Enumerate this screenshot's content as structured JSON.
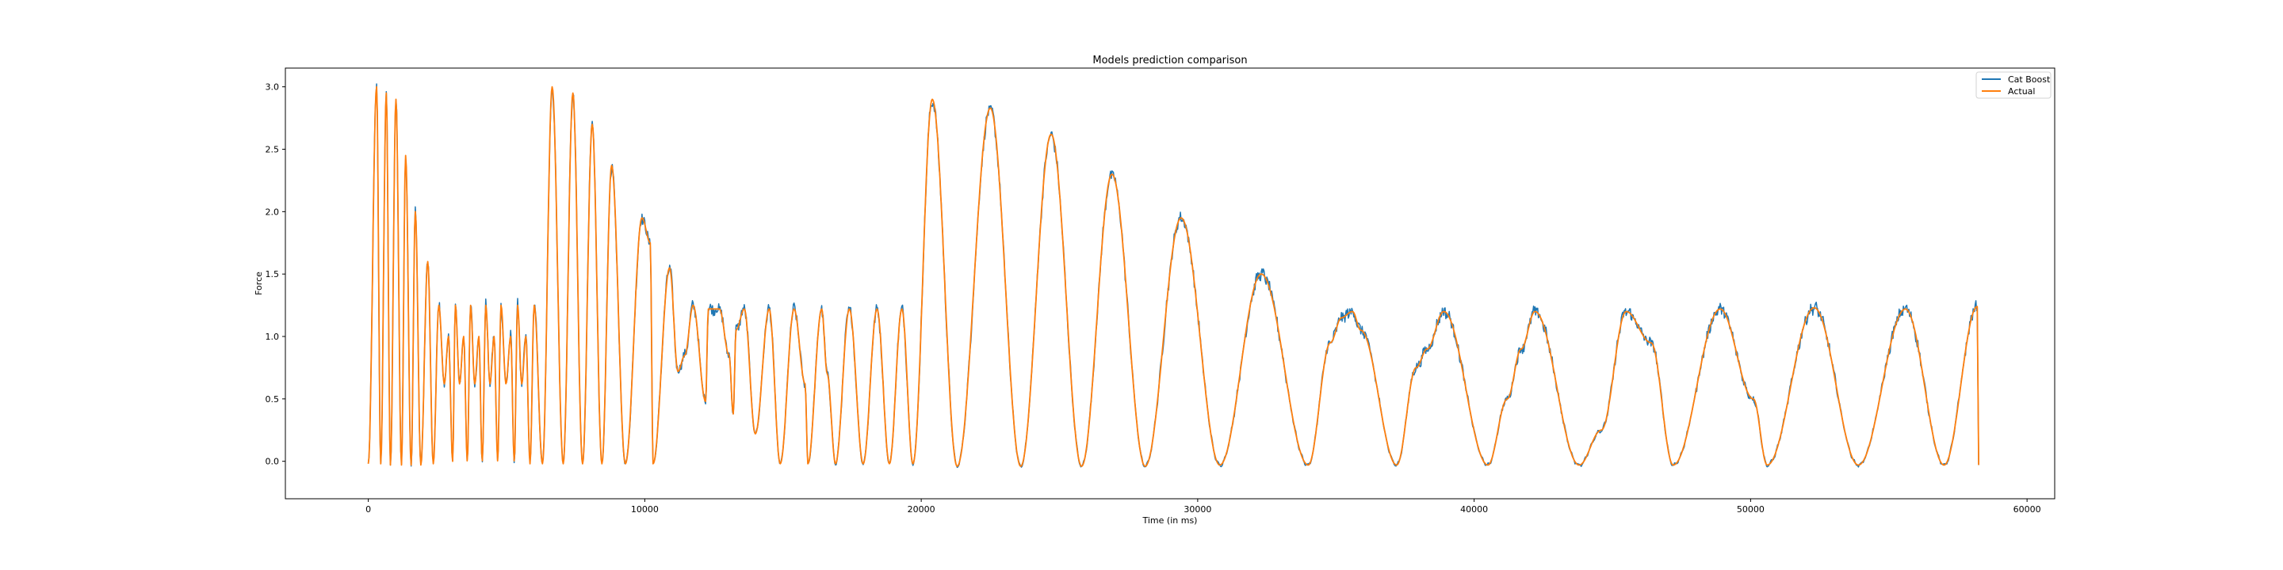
{
  "chart_data": {
    "type": "line",
    "title": "Models prediction comparison",
    "xlabel": "Time (in ms)",
    "ylabel": "Force",
    "xlim": [
      -3000,
      61000
    ],
    "ylim": [
      -0.3,
      3.15
    ],
    "xticks": [
      0,
      10000,
      20000,
      30000,
      40000,
      50000,
      60000
    ],
    "xtick_labels": [
      "0",
      "10000",
      "20000",
      "30000",
      "40000",
      "50000",
      "60000"
    ],
    "yticks": [
      0.0,
      0.5,
      1.0,
      1.5,
      2.0,
      2.5,
      3.0
    ],
    "ytick_labels": [
      "0.0",
      "0.5",
      "1.0",
      "1.5",
      "2.0",
      "2.5",
      "3.0"
    ],
    "grid": false,
    "legend_position": "top-right",
    "series": [
      {
        "name": "Cat Boost",
        "color": "#1f77b4"
      },
      {
        "name": "Actual",
        "color": "#ff7f0e"
      }
    ],
    "peaks": [
      [
        300,
        3.0
      ],
      [
        650,
        2.95
      ],
      [
        1000,
        2.9
      ],
      [
        1350,
        2.45
      ],
      [
        1700,
        2.0
      ],
      [
        2150,
        1.6
      ],
      [
        2550,
        1.25
      ],
      [
        2900,
        1.0
      ],
      [
        3150,
        1.25
      ],
      [
        3450,
        1.0
      ],
      [
        3700,
        1.25
      ],
      [
        4000,
        1.0
      ],
      [
        4250,
        1.25
      ],
      [
        4550,
        1.0
      ],
      [
        4800,
        1.25
      ],
      [
        5150,
        1.0
      ],
      [
        5400,
        1.25
      ],
      [
        5700,
        1.0
      ],
      [
        6000,
        1.25
      ],
      [
        6650,
        3.0
      ],
      [
        7400,
        2.95
      ],
      [
        8100,
        2.7
      ],
      [
        8800,
        2.37
      ],
      [
        9900,
        1.95
      ],
      [
        10900,
        1.55
      ],
      [
        11750,
        1.25
      ],
      [
        12700,
        1.22
      ],
      [
        13600,
        1.22
      ],
      [
        14500,
        1.22
      ],
      [
        15400,
        1.22
      ],
      [
        16400,
        1.22
      ],
      [
        17400,
        1.22
      ],
      [
        18400,
        1.22
      ],
      [
        19300,
        1.22
      ],
      [
        20400,
        2.9
      ],
      [
        22500,
        2.83
      ],
      [
        24700,
        2.62
      ],
      [
        26900,
        2.3
      ],
      [
        29400,
        1.95
      ],
      [
        32300,
        1.5
      ],
      [
        35600,
        1.2
      ],
      [
        38900,
        1.2
      ],
      [
        42200,
        1.2
      ],
      [
        45500,
        1.2
      ],
      [
        48900,
        1.22
      ],
      [
        52300,
        1.23
      ],
      [
        55600,
        1.22
      ],
      [
        58200,
        1.24
      ]
    ],
    "troughs": [
      [
        0,
        -0.02
      ],
      [
        450,
        -0.02
      ],
      [
        800,
        -0.03
      ],
      [
        1200,
        -0.03
      ],
      [
        1550,
        -0.03
      ],
      [
        1900,
        -0.03
      ],
      [
        2350,
        -0.02
      ],
      [
        2750,
        0.62
      ],
      [
        3050,
        0.0
      ],
      [
        3300,
        0.62
      ],
      [
        3580,
        0.0
      ],
      [
        3850,
        0.62
      ],
      [
        4120,
        0.0
      ],
      [
        4400,
        0.62
      ],
      [
        4680,
        0.0
      ],
      [
        4980,
        0.62
      ],
      [
        5280,
        0.0
      ],
      [
        5550,
        0.62
      ],
      [
        5850,
        -0.02
      ],
      [
        6300,
        -0.02
      ],
      [
        7050,
        -0.02
      ],
      [
        7750,
        -0.02
      ],
      [
        8450,
        -0.02
      ],
      [
        9300,
        -0.02
      ],
      [
        10300,
        -0.02
      ],
      [
        11200,
        0.72
      ],
      [
        12200,
        0.48
      ],
      [
        13200,
        0.38
      ],
      [
        14000,
        0.22
      ],
      [
        14900,
        -0.02
      ],
      [
        15900,
        -0.02
      ],
      [
        16900,
        -0.02
      ],
      [
        17900,
        -0.02
      ],
      [
        18850,
        -0.02
      ],
      [
        19700,
        -0.02
      ],
      [
        21300,
        -0.04
      ],
      [
        23600,
        -0.04
      ],
      [
        25800,
        -0.04
      ],
      [
        28100,
        -0.04
      ],
      [
        30800,
        -0.03
      ],
      [
        34000,
        -0.03
      ],
      [
        37200,
        -0.03
      ],
      [
        40500,
        -0.03
      ],
      [
        43800,
        -0.03
      ],
      [
        47200,
        -0.03
      ],
      [
        50600,
        -0.03
      ],
      [
        53900,
        -0.03
      ],
      [
        57000,
        -0.03
      ],
      [
        58250,
        -0.03
      ]
    ],
    "features": [
      [
        10200,
        1.75
      ],
      [
        11450,
        0.85
      ],
      [
        12300,
        1.22
      ],
      [
        13050,
        0.85
      ],
      [
        13300,
        1.05
      ],
      [
        15800,
        0.62
      ],
      [
        16600,
        0.7
      ],
      [
        34800,
        0.95
      ],
      [
        35200,
        1.15
      ],
      [
        35900,
        1.05
      ],
      [
        37900,
        0.75
      ],
      [
        38300,
        0.9
      ],
      [
        41200,
        0.5
      ],
      [
        41700,
        0.9
      ],
      [
        44600,
        0.25
      ],
      [
        46400,
        0.95
      ],
      [
        50100,
        0.5
      ]
    ]
  }
}
